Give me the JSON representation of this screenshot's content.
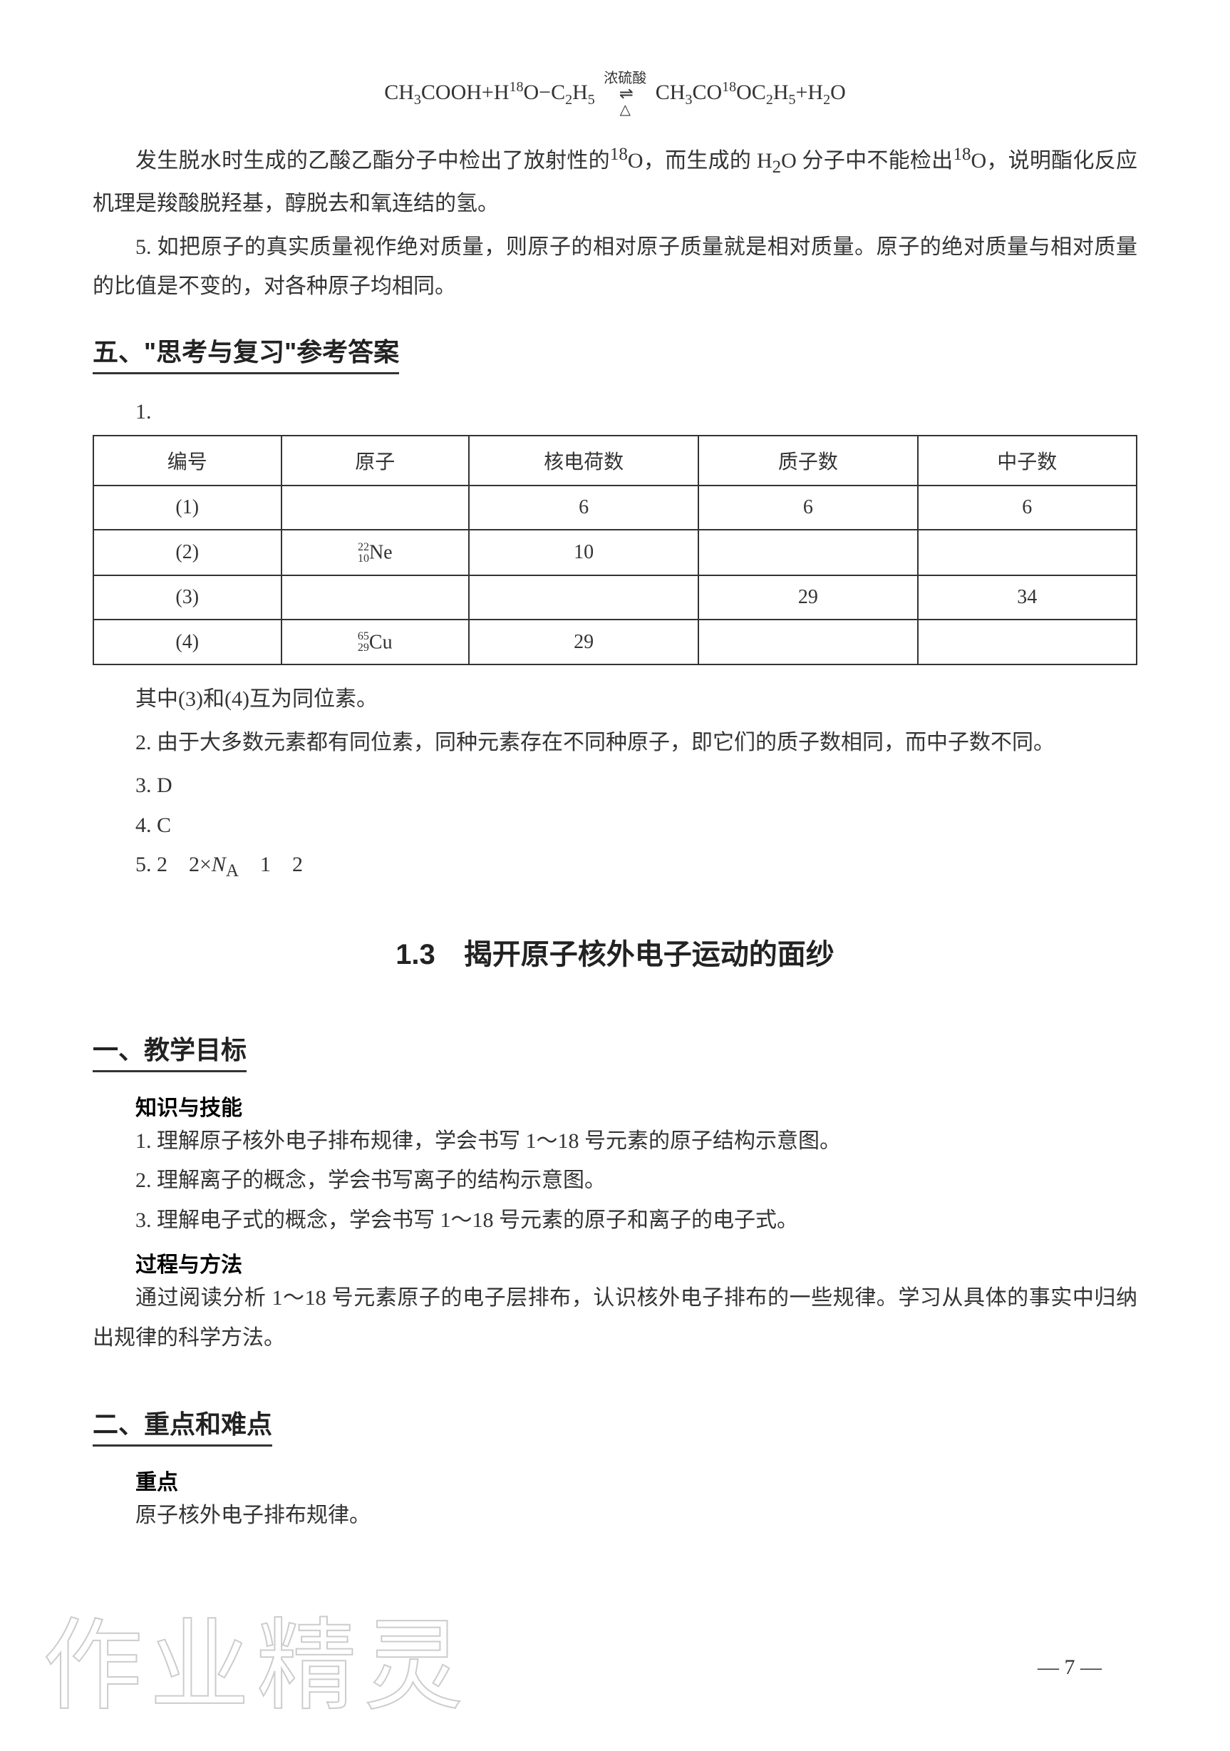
{
  "equation": {
    "lhs_html": "CH<span class='sub'>3</span>COOH+H<span class='sup'>18</span>O−C<span class='sub'>2</span>H<span class='sub'>5</span>",
    "catalyst_top": "浓硫酸",
    "catalyst_bot": "△",
    "rhs_html": "CH<span class='sub'>3</span>CO<span class='sup'>18</span>OC<span class='sub'>2</span>H<span class='sub'>5</span>+H<span class='sub'>2</span>O"
  },
  "intro_paras": [
    "发生脱水时生成的乙酸乙酯分子中检出了放射性的<span class='inline-isotope-sup'><sup>18</sup></span>O，而生成的 H<sub>2</sub>O 分子中不能检出<span class='inline-isotope-sup'><sup>18</sup></span>O，说明酯化反应机理是羧酸脱羟基，醇脱去和氧连结的氢。",
    "5. 如把原子的真实质量视作绝对质量，则原子的相对原子质量就是相对质量。原子的绝对质量与相对质量的比值是不变的，对各种原子均相同。"
  ],
  "section5": {
    "heading": "五、\"思考与复习\"参考答案",
    "q1_label": "1.",
    "table": {
      "columns": [
        "编号",
        "原子",
        "核电荷数",
        "质子数",
        "中子数"
      ],
      "col_widths": [
        "18%",
        "18%",
        "22%",
        "21%",
        "21%"
      ],
      "rows": [
        [
          "(1)",
          "",
          "6",
          "6",
          "6"
        ],
        [
          "(2)",
          {
            "mass": "22",
            "num": "10",
            "sym": "Ne"
          },
          "10",
          "",
          ""
        ],
        [
          "(3)",
          "",
          "",
          "29",
          "34"
        ],
        [
          "(4)",
          {
            "mass": "65",
            "num": "29",
            "sym": "Cu"
          },
          "29",
          "",
          ""
        ]
      ]
    },
    "after_table": "其中(3)和(4)互为同位素。",
    "q2": "2. 由于大多数元素都有同位素，同种元素存在不同种原子，即它们的质子数相同，而中子数不同。",
    "q3": "3. D",
    "q4": "4. C",
    "q5": "5. 2　2×<i>N</i><sub>A</sub>　1　2"
  },
  "section_1_3": {
    "title": "1.3　揭开原子核外电子运动的面纱",
    "h1": {
      "heading": "一、教学目标",
      "sub1": "知识与技能",
      "items1": [
        "1. 理解原子核外电子排布规律，学会书写 1～18 号元素的原子结构示意图。",
        "2. 理解离子的概念，学会书写离子的结构示意图。",
        "3. 理解电子式的概念，学会书写 1～18 号元素的原子和离子的电子式。"
      ],
      "sub2": "过程与方法",
      "para2": "通过阅读分析 1～18 号元素原子的电子层排布，认识核外电子排布的一些规律。学习从具体的事实中归纳出规律的科学方法。"
    },
    "h2": {
      "heading": "二、重点和难点",
      "sub1": "重点",
      "para1": "原子核外电子排布规律。"
    }
  },
  "page_number": "— 7 —",
  "watermark_text": "作业精灵",
  "colors": {
    "text": "#333333",
    "heading": "#222222",
    "border": "#333333",
    "watermark": "#cccccc",
    "bg": "#ffffff"
  }
}
